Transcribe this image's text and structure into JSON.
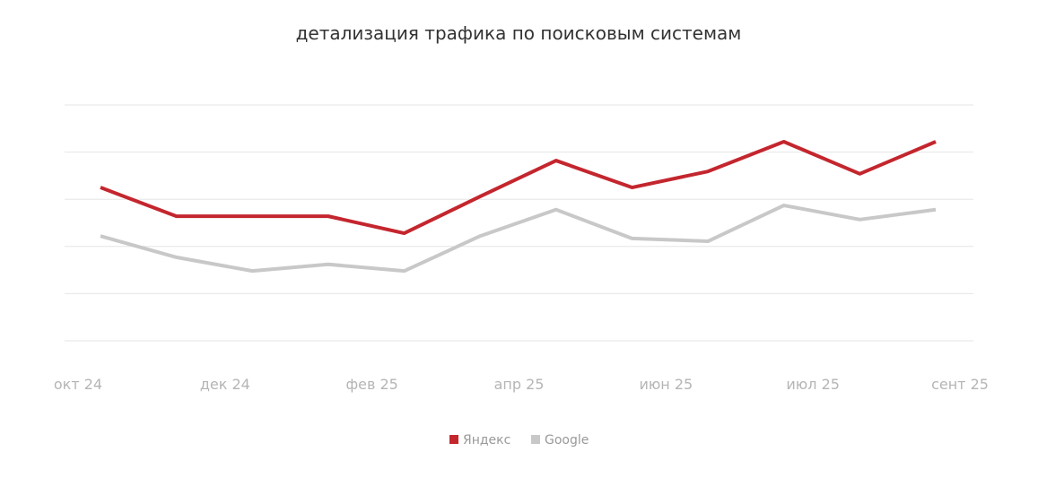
{
  "chart_data": {
    "type": "line",
    "title": "детализация трафика по поисковым системам",
    "xlabel": "",
    "ylabel": "",
    "x_tick_labels": [
      "окт 24",
      "дек 24",
      "фев 25",
      "апр 25",
      "июн 25",
      "июл 25",
      "сент 25"
    ],
    "ylim": [
      0,
      5
    ],
    "grid": true,
    "legend_placement": "bottom",
    "series": [
      {
        "name": "Яндекс",
        "color": "#c4262e",
        "values": [
          3.25,
          2.64,
          2.64,
          2.64,
          2.28,
          3.06,
          3.82,
          3.25,
          3.59,
          4.22,
          3.54,
          4.22
        ]
      },
      {
        "name": "Google",
        "color": "#c8c8c8",
        "values": [
          2.22,
          1.77,
          1.48,
          1.62,
          1.48,
          2.22,
          2.78,
          2.17,
          2.11,
          2.87,
          2.57,
          2.78
        ]
      }
    ]
  }
}
